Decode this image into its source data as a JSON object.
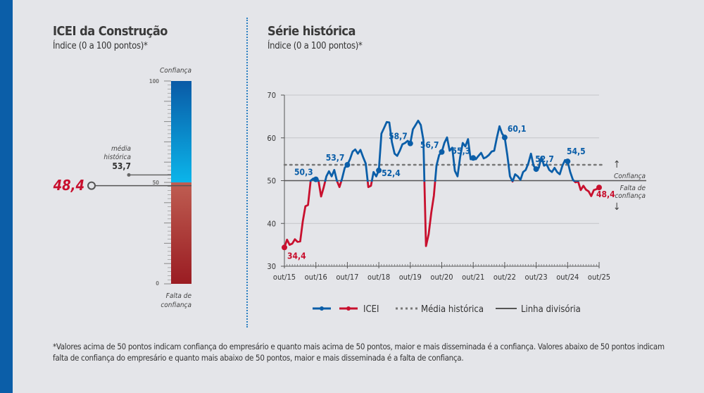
{
  "left": {
    "title": "ICEI da Construção",
    "subtitle": "Índice (0 a 100 pontos)*",
    "top_label": "Confiança",
    "bottom_label_1": "Falta de",
    "bottom_label_2": "confiança",
    "scale_ticks": [
      "100",
      "50",
      "0"
    ],
    "mean_label_1": "média",
    "mean_label_2": "histórica",
    "mean_value": 53.7,
    "mean_value_text": "53,7",
    "current_value": 48.4,
    "current_value_text": "48,4"
  },
  "chart_data": {
    "type": "line",
    "title": "Série histórica",
    "subtitle": "Índice (0 a 100 pontos)*",
    "ylim": [
      30,
      70
    ],
    "yticks": [
      "30",
      "40",
      "50",
      "60",
      "70"
    ],
    "xticks": [
      "out/15",
      "out/16",
      "out/17",
      "out/18",
      "out/19",
      "out/20",
      "out/21",
      "out/22",
      "out/23",
      "out/24",
      "out/25"
    ],
    "grid": true,
    "legend_placement": "bottom",
    "colors": {
      "above": "#0b5ea8",
      "below": "#c8102e",
      "mean": "#777777",
      "divider": "#555555"
    },
    "legend": {
      "series": "ICEI",
      "mean": "Média histórica",
      "divider": "Linha divisória"
    },
    "mean_value": 53.7,
    "divider_value": 50,
    "zone_labels": {
      "above": "Confiança",
      "below_1": "Falta de",
      "below_2": "confiança"
    },
    "series": [
      {
        "name": "ICEI",
        "points": [
          [
            "2015-10",
            34.4
          ],
          [
            "2015-11",
            36.2
          ],
          [
            "2015-12",
            35.0
          ],
          [
            "2016-01",
            35.3
          ],
          [
            "2016-02",
            36.3
          ],
          [
            "2016-03",
            35.7
          ],
          [
            "2016-04",
            35.8
          ],
          [
            "2016-05",
            40.5
          ],
          [
            "2016-06",
            44.0
          ],
          [
            "2016-07",
            44.3
          ],
          [
            "2016-08",
            50.0
          ],
          [
            "2016-09",
            50.5
          ],
          [
            "2016-10",
            50.3
          ],
          [
            "2016-11",
            50.0
          ],
          [
            "2016-12",
            46.3
          ],
          [
            "2017-01",
            48.5
          ],
          [
            "2017-02",
            51.0
          ],
          [
            "2017-03",
            52.2
          ],
          [
            "2017-04",
            51.0
          ],
          [
            "2017-05",
            52.5
          ],
          [
            "2017-06",
            50.0
          ],
          [
            "2017-07",
            48.5
          ],
          [
            "2017-08",
            50.5
          ],
          [
            "2017-09",
            53.0
          ],
          [
            "2017-10",
            53.7
          ],
          [
            "2017-11",
            55.0
          ],
          [
            "2017-12",
            56.8
          ],
          [
            "2018-01",
            57.3
          ],
          [
            "2018-02",
            56.3
          ],
          [
            "2018-03",
            57.2
          ],
          [
            "2018-04",
            55.5
          ],
          [
            "2018-05",
            54.0
          ],
          [
            "2018-06",
            48.5
          ],
          [
            "2018-07",
            48.8
          ],
          [
            "2018-08",
            52.0
          ],
          [
            "2018-09",
            51.0
          ],
          [
            "2018-10",
            52.4
          ],
          [
            "2018-11",
            61.0
          ],
          [
            "2018-12",
            62.3
          ],
          [
            "2019-01",
            63.7
          ],
          [
            "2019-02",
            63.6
          ],
          [
            "2019-03",
            59.0
          ],
          [
            "2019-04",
            56.3
          ],
          [
            "2019-05",
            55.8
          ],
          [
            "2019-06",
            57.0
          ],
          [
            "2019-07",
            58.5
          ],
          [
            "2019-08",
            58.8
          ],
          [
            "2019-09",
            59.3
          ],
          [
            "2019-10",
            58.7
          ],
          [
            "2019-11",
            62.0
          ],
          [
            "2019-12",
            63.0
          ],
          [
            "2020-01",
            64.0
          ],
          [
            "2020-02",
            63.0
          ],
          [
            "2020-03",
            59.5
          ],
          [
            "2020-04",
            34.7
          ],
          [
            "2020-05",
            37.5
          ],
          [
            "2020-06",
            42.5
          ],
          [
            "2020-07",
            46.5
          ],
          [
            "2020-08",
            53.5
          ],
          [
            "2020-09",
            56.0
          ],
          [
            "2020-10",
            56.7
          ],
          [
            "2020-11",
            58.8
          ],
          [
            "2020-12",
            60.1
          ],
          [
            "2021-01",
            57.0
          ],
          [
            "2021-02",
            57.7
          ],
          [
            "2021-03",
            52.3
          ],
          [
            "2021-04",
            51.0
          ],
          [
            "2021-05",
            55.5
          ],
          [
            "2021-06",
            58.8
          ],
          [
            "2021-07",
            58.0
          ],
          [
            "2021-08",
            59.7
          ],
          [
            "2021-09",
            55.0
          ],
          [
            "2021-10",
            55.3
          ],
          [
            "2021-11",
            55.0
          ],
          [
            "2021-12",
            55.8
          ],
          [
            "2022-01",
            56.5
          ],
          [
            "2022-02",
            55.2
          ],
          [
            "2022-03",
            55.5
          ],
          [
            "2022-04",
            56.0
          ],
          [
            "2022-05",
            56.8
          ],
          [
            "2022-06",
            57.0
          ],
          [
            "2022-07",
            60.0
          ],
          [
            "2022-08",
            62.7
          ],
          [
            "2022-09",
            61.0
          ],
          [
            "2022-10",
            60.1
          ],
          [
            "2022-11",
            56.0
          ],
          [
            "2022-12",
            51.0
          ],
          [
            "2023-01",
            49.8
          ],
          [
            "2023-02",
            51.5
          ],
          [
            "2023-03",
            51.0
          ],
          [
            "2023-04",
            50.2
          ],
          [
            "2023-05",
            52.0
          ],
          [
            "2023-06",
            52.5
          ],
          [
            "2023-07",
            54.0
          ],
          [
            "2023-08",
            56.3
          ],
          [
            "2023-09",
            53.5
          ],
          [
            "2023-10",
            52.7
          ],
          [
            "2023-11",
            53.0
          ],
          [
            "2023-12",
            55.5
          ],
          [
            "2024-01",
            53.5
          ],
          [
            "2024-02",
            53.8
          ],
          [
            "2024-03",
            52.5
          ],
          [
            "2024-04",
            52.0
          ],
          [
            "2024-05",
            53.0
          ],
          [
            "2024-06",
            52.0
          ],
          [
            "2024-07",
            51.5
          ],
          [
            "2024-08",
            53.5
          ],
          [
            "2024-09",
            54.8
          ],
          [
            "2024-10",
            54.5
          ],
          [
            "2024-11",
            52.0
          ],
          [
            "2024-12",
            50.2
          ],
          [
            "2025-01",
            49.6
          ],
          [
            "2025-02",
            49.8
          ],
          [
            "2025-03",
            47.8
          ],
          [
            "2025-04",
            48.8
          ],
          [
            "2025-05",
            47.9
          ],
          [
            "2025-06",
            47.5
          ],
          [
            "2025-07",
            46.4
          ],
          [
            "2025-08",
            47.8
          ],
          [
            "2025-09",
            48.0
          ],
          [
            "2025-10",
            48.4
          ]
        ]
      }
    ],
    "annotations": [
      [
        "2015-10",
        34.4,
        "34,4"
      ],
      [
        "2016-10",
        50.3,
        "50,3"
      ],
      [
        "2017-10",
        53.7,
        "53,7"
      ],
      [
        "2018-10",
        52.4,
        "52,4"
      ],
      [
        "2019-10",
        58.7,
        "58,7"
      ],
      [
        "2020-10",
        56.7,
        "56,7"
      ],
      [
        "2021-10",
        55.3,
        "55,3"
      ],
      [
        "2022-10",
        60.1,
        "60,1"
      ],
      [
        "2023-10",
        52.7,
        "52,7"
      ],
      [
        "2024-10",
        54.5,
        "54,5"
      ],
      [
        "2025-10",
        48.4,
        "48,4"
      ]
    ]
  },
  "footnote": "*Valores acima de 50 pontos indicam confiança do empresário e quanto mais acima de 50 pontos, maior e mais disseminada é a confiança. Valores abaixo de 50 pontos indicam falta de confiança do empresário e quanto mais abaixo de 50 pontos, maior e mais disseminada é a falta de confiança."
}
